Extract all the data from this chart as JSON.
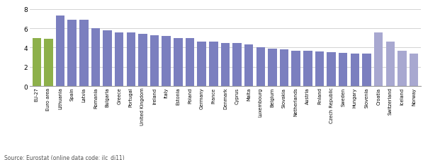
{
  "categories": [
    "EU-27",
    "Euro area",
    "Lithuania",
    "Spain",
    "Latvia",
    "Romania",
    "Bulgaria",
    "Greece",
    "Portugal",
    "United Kingdom",
    "Ireland",
    "Italy",
    "Estonia",
    "Poland",
    "Germany",
    "France",
    "Denmark",
    "Cyprus",
    "Malta",
    "Luxembourg",
    "Belgium",
    "Slovakia",
    "Netherlands",
    "Austria",
    "Finland",
    "Czech Republic",
    "Sweden",
    "Hungary",
    "Slovenia",
    "Croatia",
    "Switzerland",
    "Iceland",
    "Norway"
  ],
  "values": [
    5.0,
    4.9,
    7.3,
    6.9,
    6.9,
    6.0,
    5.8,
    5.6,
    5.6,
    5.4,
    5.3,
    5.2,
    5.0,
    5.0,
    4.6,
    4.6,
    4.5,
    4.5,
    4.3,
    4.0,
    3.9,
    3.8,
    3.7,
    3.7,
    3.6,
    3.55,
    3.45,
    3.4,
    3.35,
    5.6,
    4.6,
    3.7,
    3.4
  ],
  "colors": [
    "#8db04a",
    "#8db04a",
    "#7b7fbf",
    "#7b7fbf",
    "#7b7fbf",
    "#7b7fbf",
    "#7b7fbf",
    "#7b7fbf",
    "#7b7fbf",
    "#7b7fbf",
    "#7b7fbf",
    "#7b7fbf",
    "#7b7fbf",
    "#7b7fbf",
    "#7b7fbf",
    "#7b7fbf",
    "#7b7fbf",
    "#7b7fbf",
    "#7b7fbf",
    "#7b7fbf",
    "#7b7fbf",
    "#7b7fbf",
    "#7b7fbf",
    "#7b7fbf",
    "#7b7fbf",
    "#7b7fbf",
    "#7b7fbf",
    "#7b7fbf",
    "#7b7fbf",
    "#a8a8d0",
    "#a8a8d0",
    "#a8a8d0",
    "#a8a8d0"
  ],
  "ylim": [
    0,
    8.5
  ],
  "yticks": [
    0,
    2,
    4,
    6,
    8
  ],
  "source_text": "Source: Eurostat (online data code: ilc_di11)",
  "background_color": "#ffffff",
  "grid_color": "#cccccc"
}
